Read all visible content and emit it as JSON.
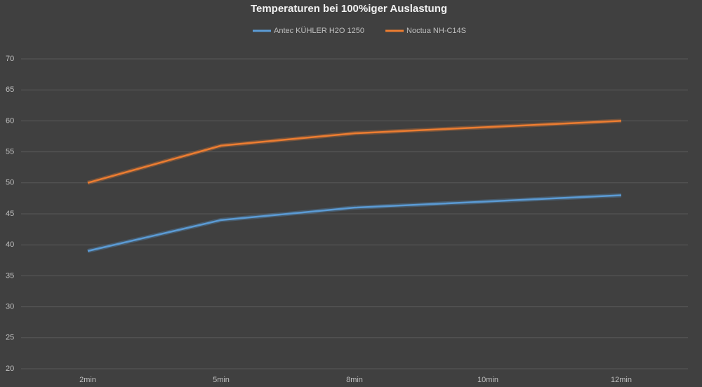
{
  "chart_data": {
    "type": "line",
    "title": "Temperaturen bei 100%iger Auslastung",
    "categories": [
      "2min",
      null,
      "5min",
      null,
      "8min",
      null,
      "10min",
      null,
      "12min"
    ],
    "series": [
      {
        "name": "Antec KÜHLER H2O 1250",
        "color": "#5b9bd5",
        "values": [
          39,
          41.5,
          44,
          45,
          46,
          46.5,
          47,
          47.5,
          48
        ]
      },
      {
        "name": "Noctua NH-C14S",
        "color": "#ed7d31",
        "values": [
          50,
          53,
          56,
          57,
          58,
          58.5,
          59,
          59.5,
          60
        ]
      }
    ],
    "ylim": [
      20,
      70
    ],
    "yticks": [
      20,
      25,
      30,
      35,
      40,
      45,
      50,
      55,
      60,
      65,
      70
    ],
    "grid": true,
    "legend": "top"
  }
}
